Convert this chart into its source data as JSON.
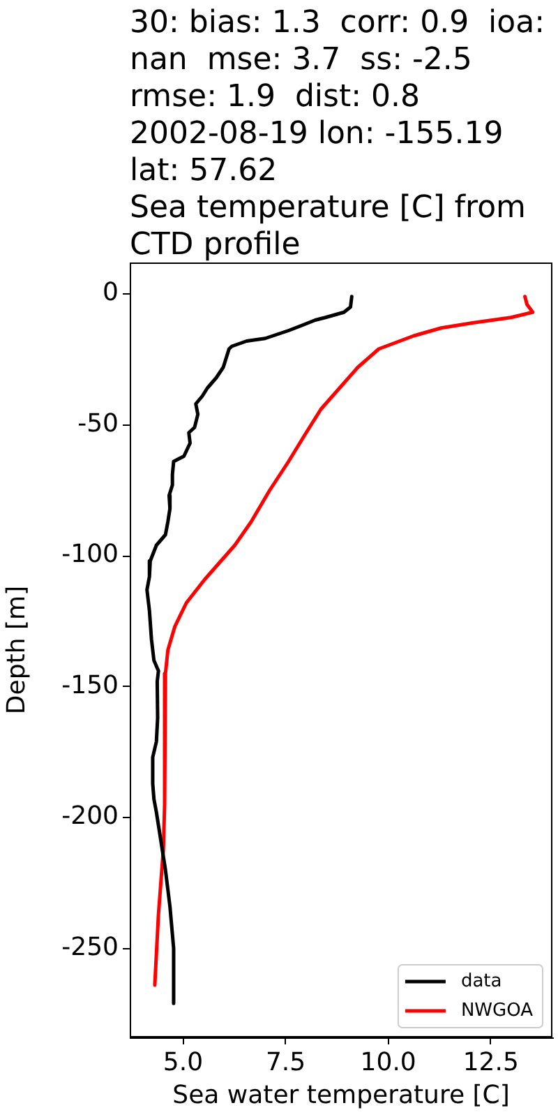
{
  "chart_data": {
    "type": "line",
    "title": "30: bias: 1.3  corr: 0.9  ioa:\nnan  mse: 3.7  ss: -2.5\nrmse: 1.9  dist: 0.8\n2002-08-19 lon: -155.19\nlat: 57.62\nSea temperature [C] from\nCTD profile",
    "xlabel": "Sea water temperature [C]",
    "ylabel": "Depth [m]",
    "series": [
      {
        "name": "data",
        "color": "#000000",
        "x": [
          9.11,
          9.08,
          8.92,
          8.47,
          8.22,
          7.9,
          7.57,
          7.0,
          6.55,
          6.19,
          6.12,
          5.98,
          5.81,
          5.59,
          5.47,
          5.31,
          5.36,
          5.28,
          5.14,
          5.17,
          5.02,
          4.77,
          4.74,
          4.74,
          4.66,
          4.68,
          4.63,
          4.57,
          4.35,
          4.2,
          4.18,
          4.12,
          4.18,
          4.23,
          4.29,
          4.4,
          4.37,
          4.38,
          4.35,
          4.26,
          4.26,
          4.29,
          4.35,
          4.4,
          4.57,
          4.68,
          4.77,
          4.77
        ],
        "values": [
          -1,
          -5,
          -7,
          -9,
          -10,
          -12,
          -14,
          -17,
          -18,
          -20,
          -21,
          -28,
          -32,
          -36,
          -39,
          -42,
          -46,
          -51,
          -53,
          -57,
          -62,
          -64,
          -69,
          -73,
          -77,
          -82,
          -87,
          -92,
          -96,
          -102,
          -108,
          -113,
          -121,
          -132,
          -140,
          -144,
          -148,
          -162,
          -171,
          -177,
          -187,
          -193,
          -198,
          -203,
          -220,
          -234,
          -250,
          -271
        ]
      },
      {
        "name": "NWGOA",
        "color": "#ff0000",
        "x": [
          13.33,
          13.38,
          13.52,
          12.99,
          12.08,
          11.29,
          10.62,
          10.11,
          9.77,
          9.26,
          8.81,
          8.36,
          7.96,
          7.57,
          7.11,
          6.66,
          6.26,
          5.53,
          5.08,
          4.8,
          4.63,
          4.57,
          4.55,
          4.52,
          4.4,
          4.31
        ],
        "values": [
          -1,
          -4,
          -7,
          -9,
          -11,
          -13,
          -16,
          -19,
          -21,
          -28,
          -36,
          -44,
          -54,
          -64,
          -75,
          -87,
          -96,
          -109,
          -118,
          -127,
          -136,
          -145,
          -195,
          -212,
          -237,
          -264
        ]
      }
    ],
    "xlim": [
      3.7,
      14.0
    ],
    "xticks": [
      {
        "value": 5,
        "label": "5.0"
      },
      {
        "value": 7.5,
        "label": "7.5"
      },
      {
        "value": 10,
        "label": "10.0"
      },
      {
        "value": 12.5,
        "label": "12.5"
      }
    ],
    "ylim": [
      -284,
      12
    ],
    "yticks": [
      0,
      -50,
      -100,
      -150,
      -200,
      -250
    ],
    "grid": false,
    "legend": "bottom right"
  }
}
